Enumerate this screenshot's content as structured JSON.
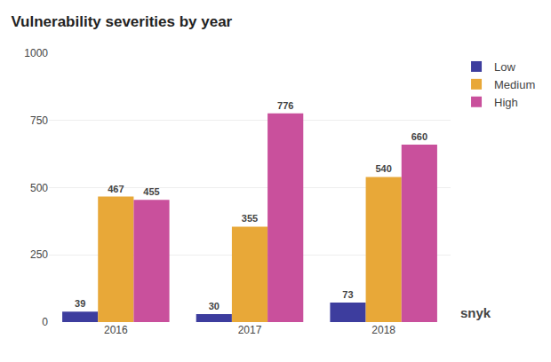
{
  "chart_data": {
    "type": "bar",
    "title": "Vulnerability severities by year",
    "categories": [
      "2016",
      "2017",
      "2018"
    ],
    "series": [
      {
        "name": "Low",
        "color": "#3d3d9e",
        "values": [
          39,
          30,
          73
        ]
      },
      {
        "name": "Medium",
        "color": "#e8a838",
        "values": [
          467,
          355,
          540
        ]
      },
      {
        "name": "High",
        "color": "#c9509c",
        "values": [
          455,
          776,
          660
        ]
      }
    ],
    "ylim": [
      0,
      1000
    ],
    "yticks": [
      0,
      250,
      500,
      750,
      1000
    ],
    "grid": true,
    "legend": "right",
    "data_labels": true,
    "annotations": [
      "snyk"
    ]
  }
}
